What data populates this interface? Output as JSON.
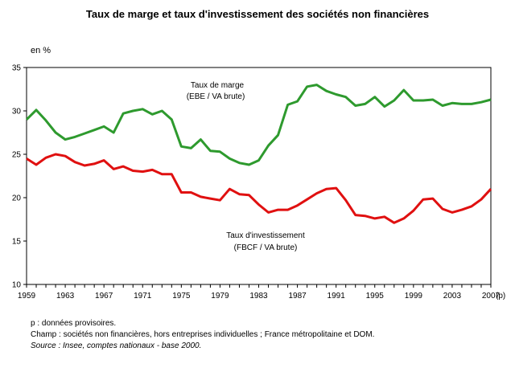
{
  "chart_data": {
    "type": "line",
    "title": "Taux de marge et taux d'investissement des sociétés non financières",
    "unit_label": "en %",
    "ylim": [
      10,
      35
    ],
    "yticks": [
      10,
      15,
      20,
      25,
      30,
      35
    ],
    "xlim": [
      1959,
      2007
    ],
    "xticks": [
      "1959",
      "1963",
      "1967",
      "1971",
      "1975",
      "1979",
      "1983",
      "1987",
      "1991",
      "1995",
      "1999",
      "2003",
      "2007"
    ],
    "x_suffix": "(p)",
    "grid": false,
    "x": [
      1959,
      1960,
      1961,
      1962,
      1963,
      1964,
      1965,
      1966,
      1967,
      1968,
      1969,
      1970,
      1971,
      1972,
      1973,
      1974,
      1975,
      1976,
      1977,
      1978,
      1979,
      1980,
      1981,
      1982,
      1983,
      1984,
      1985,
      1986,
      1987,
      1988,
      1989,
      1990,
      1991,
      1992,
      1993,
      1994,
      1995,
      1996,
      1997,
      1998,
      1999,
      2000,
      2001,
      2002,
      2003,
      2004,
      2005,
      2006,
      2007
    ],
    "series": [
      {
        "name_line1": "Taux de marge",
        "name_line2": "(EBE / VA brute)",
        "color": "#2e9a2e",
        "values": [
          29.0,
          30.1,
          28.9,
          27.5,
          26.7,
          27.0,
          27.4,
          27.8,
          28.2,
          27.5,
          29.7,
          30.0,
          30.2,
          29.6,
          30.0,
          29.0,
          25.9,
          25.7,
          26.7,
          25.4,
          25.3,
          24.5,
          24.0,
          23.8,
          24.3,
          26.0,
          27.2,
          30.7,
          31.1,
          32.8,
          33.0,
          32.3,
          31.9,
          31.6,
          30.6,
          30.8,
          31.6,
          30.5,
          31.2,
          32.4,
          31.2,
          31.2,
          31.3,
          30.6,
          30.9,
          30.8,
          30.8,
          31.0,
          31.3
        ]
      },
      {
        "name_line1": "Taux d'investissement",
        "name_line2": "(FBCF / VA brute)",
        "color": "#e01010",
        "values": [
          24.5,
          23.8,
          24.6,
          25.0,
          24.8,
          24.1,
          23.7,
          23.9,
          24.3,
          23.3,
          23.6,
          23.1,
          23.0,
          23.2,
          22.7,
          22.7,
          20.6,
          20.6,
          20.1,
          19.9,
          19.7,
          21.0,
          20.4,
          20.3,
          19.2,
          18.3,
          18.6,
          18.6,
          19.1,
          19.8,
          20.5,
          21.0,
          21.1,
          19.7,
          18.0,
          17.9,
          17.6,
          17.8,
          17.1,
          17.6,
          18.5,
          19.8,
          19.9,
          18.7,
          18.3,
          18.6,
          19.0,
          19.8,
          21.0
        ]
      }
    ]
  },
  "notes": {
    "provisional": "p : données provisoires.",
    "scope": "Champ : sociétés non financières, hors entreprises individuelles ; France métropolitaine et DOM.",
    "source": "Source : Insee, comptes nationaux - base 2000."
  }
}
